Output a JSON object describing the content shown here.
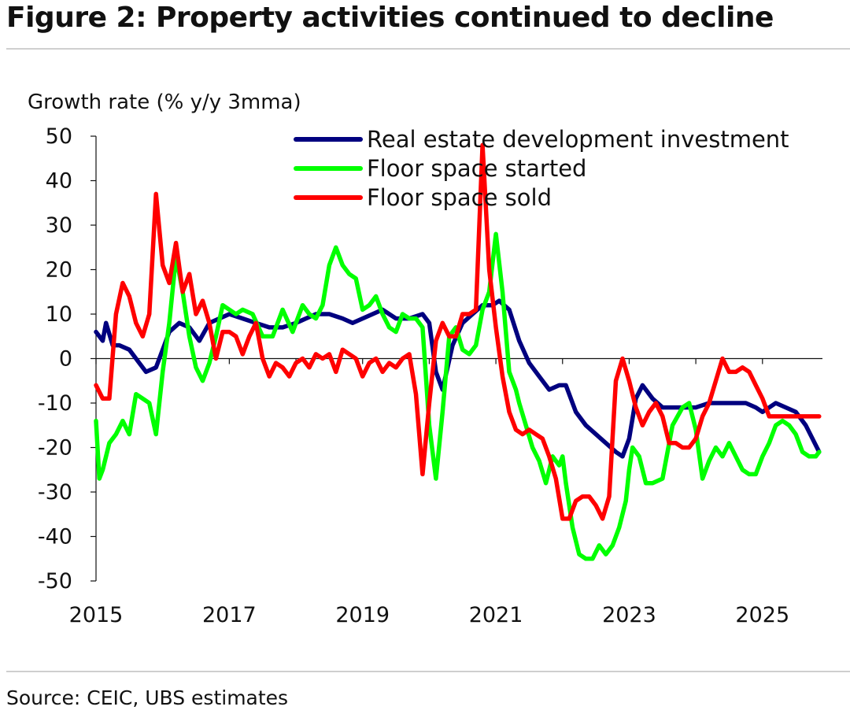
{
  "title": "Figure 2: Property activities continued to decline",
  "source": "Source: CEIC, UBS estimates",
  "chart_data": {
    "type": "line",
    "title": "Figure 2: Property activities continued to decline",
    "ylabel": "Growth rate (% y/y 3mma)",
    "xlabel": "",
    "xlim": [
      2015.0,
      2025.9
    ],
    "ylim": [
      -50,
      50
    ],
    "yticks": [
      50,
      40,
      30,
      20,
      10,
      0,
      -10,
      -20,
      -30,
      -40,
      -50
    ],
    "xticks": [
      "2015",
      "2017",
      "2019",
      "2021",
      "2023",
      "2025"
    ],
    "grid": false,
    "legend_position": "top-center",
    "series": [
      {
        "name": "Real estate development investment",
        "color": "#00007f",
        "x": [
          2015.0,
          2015.1,
          2015.15,
          2015.25,
          2015.35,
          2015.5,
          2015.65,
          2015.75,
          2015.9,
          2016.0,
          2016.1,
          2016.25,
          2016.4,
          2016.55,
          2016.7,
          2016.85,
          2017.0,
          2017.2,
          2017.4,
          2017.6,
          2017.8,
          2018.0,
          2018.15,
          2018.3,
          2018.5,
          2018.7,
          2018.85,
          2019.0,
          2019.15,
          2019.3,
          2019.5,
          2019.7,
          2019.9,
          2020.0,
          2020.1,
          2020.2,
          2020.35,
          2020.5,
          2020.65,
          2020.8,
          2020.95,
          2021.05,
          2021.2,
          2021.35,
          2021.5,
          2021.65,
          2021.8,
          2021.95,
          2022.05,
          2022.2,
          2022.35,
          2022.5,
          2022.65,
          2022.8,
          2022.9,
          2023.0,
          2023.1,
          2023.2,
          2023.35,
          2023.5,
          2023.65,
          2023.8,
          2024.0,
          2024.2,
          2024.4,
          2024.6,
          2024.75,
          2024.9,
          2025.0,
          2025.1,
          2025.2,
          2025.35,
          2025.5,
          2025.65,
          2025.75,
          2025.85
        ],
        "values": [
          6,
          4,
          8,
          3,
          3,
          2,
          -1,
          -3,
          -2,
          2,
          6,
          8,
          7,
          4,
          8,
          9,
          10,
          9,
          8,
          7,
          7,
          8,
          9,
          10,
          10,
          9,
          8,
          9,
          10,
          11,
          9,
          9,
          10,
          8,
          -3,
          -7,
          3,
          8,
          10,
          12,
          12,
          13,
          11,
          4,
          -1,
          -4,
          -7,
          -6,
          -6,
          -12,
          -15,
          -17,
          -19,
          -21,
          -22,
          -18,
          -9,
          -6,
          -9,
          -11,
          -11,
          -11,
          -11,
          -10,
          -10,
          -10,
          -10,
          -11,
          -12,
          -11,
          -10,
          -11,
          -12,
          -15,
          -18,
          -21
        ]
      },
      {
        "name": "Floor space started",
        "color": "#00ff00",
        "x": [
          2015.0,
          2015.05,
          2015.1,
          2015.2,
          2015.3,
          2015.4,
          2015.5,
          2015.6,
          2015.7,
          2015.8,
          2015.9,
          2016.0,
          2016.1,
          2016.2,
          2016.3,
          2016.4,
          2016.5,
          2016.6,
          2016.7,
          2016.8,
          2016.9,
          2017.0,
          2017.1,
          2017.2,
          2017.35,
          2017.5,
          2017.65,
          2017.8,
          2017.95,
          2018.1,
          2018.2,
          2018.3,
          2018.4,
          2018.5,
          2018.6,
          2018.7,
          2018.8,
          2018.9,
          2019.0,
          2019.1,
          2019.2,
          2019.3,
          2019.4,
          2019.5,
          2019.6,
          2019.7,
          2019.8,
          2019.9,
          2020.0,
          2020.1,
          2020.2,
          2020.3,
          2020.4,
          2020.5,
          2020.6,
          2020.7,
          2020.8,
          2020.9,
          2021.0,
          2021.1,
          2021.2,
          2021.3,
          2021.35,
          2021.45,
          2021.55,
          2021.65,
          2021.75,
          2021.85,
          2021.95,
          2022.0,
          2022.05,
          2022.15,
          2022.25,
          2022.35,
          2022.45,
          2022.55,
          2022.65,
          2022.75,
          2022.85,
          2022.95,
          2023.0,
          2023.05,
          2023.15,
          2023.25,
          2023.35,
          2023.5,
          2023.65,
          2023.8,
          2023.9,
          2024.0,
          2024.1,
          2024.2,
          2024.3,
          2024.4,
          2024.5,
          2024.6,
          2024.7,
          2024.8,
          2024.9,
          2025.0,
          2025.1,
          2025.2,
          2025.3,
          2025.4,
          2025.5,
          2025.6,
          2025.7,
          2025.8,
          2025.85
        ],
        "values": [
          -14,
          -27,
          -25,
          -19,
          -17,
          -14,
          -17,
          -8,
          -9,
          -10,
          -17,
          -3,
          8,
          23,
          15,
          5,
          -2,
          -5,
          -1,
          5,
          12,
          11,
          10,
          11,
          10,
          5,
          5,
          11,
          6,
          12,
          10,
          9,
          12,
          21,
          25,
          21,
          19,
          18,
          11,
          12,
          14,
          10,
          7,
          6,
          10,
          9,
          9,
          7,
          -15,
          -27,
          -12,
          5,
          7,
          2,
          1,
          3,
          11,
          15,
          28,
          15,
          -3,
          -7,
          -10,
          -15,
          -20,
          -23,
          -28,
          -22,
          -24,
          -22,
          -28,
          -38,
          -44,
          -45,
          -45,
          -42,
          -44,
          -42,
          -38,
          -32,
          -25,
          -20,
          -22,
          -28,
          -28,
          -27,
          -15,
          -11,
          -10,
          -16,
          -27,
          -23,
          -20,
          -22,
          -19,
          -22,
          -25,
          -26,
          -26,
          -22,
          -19,
          -15,
          -14,
          -15,
          -17,
          -21,
          -22,
          -22,
          -21
        ],
        "_": "values length matched by trimming below"
      },
      {
        "name": "Floor space sold",
        "color": "#ff0000",
        "x": [
          2015.0,
          2015.1,
          2015.2,
          2015.3,
          2015.4,
          2015.5,
          2015.6,
          2015.7,
          2015.8,
          2015.9,
          2016.0,
          2016.1,
          2016.2,
          2016.3,
          2016.4,
          2016.5,
          2016.6,
          2016.7,
          2016.8,
          2016.9,
          2017.0,
          2017.1,
          2017.2,
          2017.3,
          2017.4,
          2017.5,
          2017.6,
          2017.7,
          2017.8,
          2017.9,
          2018.0,
          2018.1,
          2018.2,
          2018.3,
          2018.4,
          2018.5,
          2018.6,
          2018.7,
          2018.8,
          2018.9,
          2019.0,
          2019.1,
          2019.2,
          2019.3,
          2019.4,
          2019.5,
          2019.6,
          2019.7,
          2019.8,
          2019.9,
          2020.0,
          2020.1,
          2020.2,
          2020.3,
          2020.4,
          2020.5,
          2020.6,
          2020.7,
          2020.8,
          2020.9,
          2021.0,
          2021.1,
          2021.2,
          2021.3,
          2021.4,
          2021.5,
          2021.6,
          2021.7,
          2021.8,
          2021.9,
          2022.0,
          2022.1,
          2022.2,
          2022.3,
          2022.4,
          2022.5,
          2022.6,
          2022.7,
          2022.8,
          2022.9,
          2023.0,
          2023.1,
          2023.2,
          2023.3,
          2023.4,
          2023.5,
          2023.6,
          2023.7,
          2023.8,
          2023.9,
          2024.0,
          2024.1,
          2024.2,
          2024.3,
          2024.4,
          2024.5,
          2024.6,
          2024.7,
          2024.8,
          2024.9,
          2025.0,
          2025.1,
          2025.2,
          2025.3,
          2025.4,
          2025.5,
          2025.6,
          2025.7,
          2025.8,
          2025.85
        ],
        "values": [
          -6,
          -9,
          -9,
          10,
          17,
          14,
          8,
          5,
          10,
          37,
          21,
          17,
          26,
          15,
          19,
          10,
          13,
          8,
          0,
          6,
          6,
          5,
          1,
          5,
          8,
          0,
          -4,
          -1,
          -2,
          -4,
          -1,
          0,
          -2,
          1,
          0,
          1,
          -3,
          2,
          1,
          0,
          -4,
          -1,
          0,
          -3,
          -1,
          -2,
          0,
          1,
          -8,
          -26,
          -10,
          4,
          8,
          5,
          5,
          10,
          10,
          11,
          48,
          20,
          7,
          -4,
          -12,
          -16,
          -17,
          -16,
          -17,
          -18,
          -22,
          -27,
          -36,
          -36,
          -32,
          -31,
          -31,
          -33,
          -36,
          -31,
          -5,
          0,
          -5,
          -11,
          -15,
          -12,
          -10,
          -13,
          -19,
          -19,
          -20,
          -20,
          -18,
          -13,
          -10,
          -5,
          0,
          -3,
          -3,
          -2,
          -3,
          -6,
          -9,
          -13,
          -13,
          -13,
          -13,
          -13,
          -13,
          -13,
          -13,
          -13
        ],
        "values_note": ""
      }
    ]
  }
}
